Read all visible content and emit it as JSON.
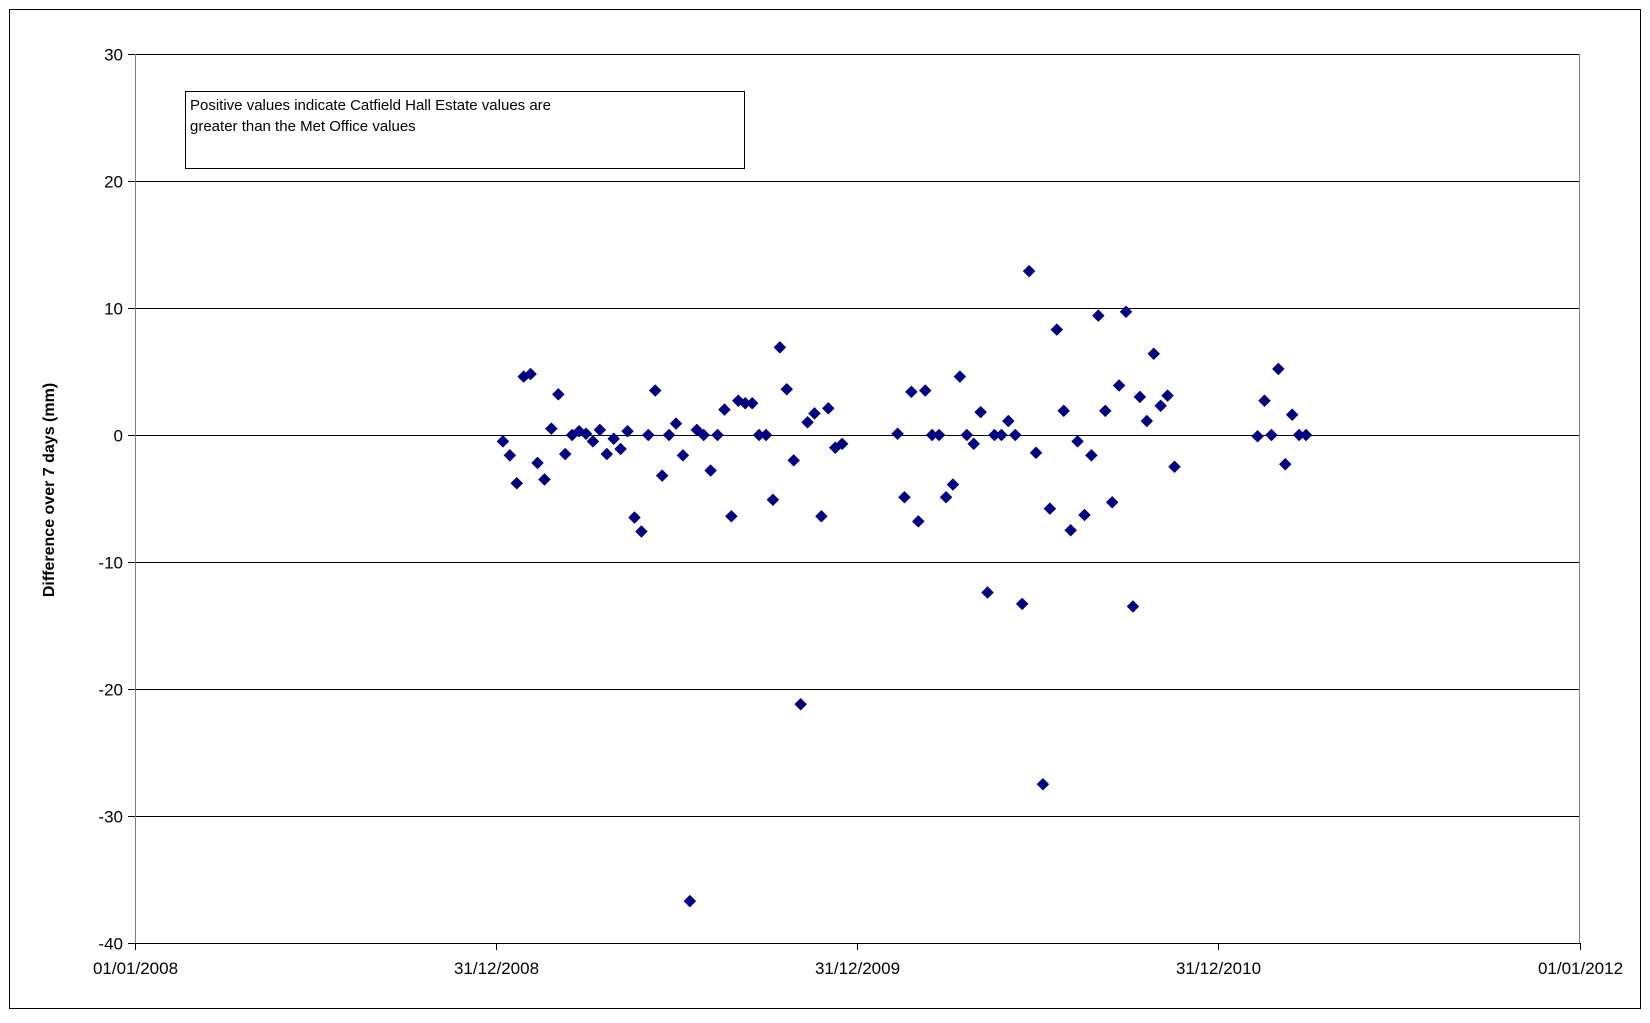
{
  "chart_data": {
    "type": "scatter",
    "title": "",
    "xlabel": "",
    "ylabel": "Difference over 7 days (mm)",
    "annotation": "Positive values indicate Catfield Hall Estate values are greater than the Met Office values",
    "annotation_lines": [
      "Positive values indicate Catfield Hall Estate values are",
      "greater than the Met Office values"
    ],
    "x_axis": {
      "type": "date",
      "min": "2008-01-01",
      "max": "2012-01-01",
      "tick_labels": [
        "01/01/2008",
        "31/12/2008",
        "31/12/2009",
        "31/12/2010",
        "01/01/2012"
      ]
    },
    "y_axis": {
      "ylim": [
        -40,
        30
      ],
      "tick_labels": [
        "-40",
        "-30",
        "-20",
        "-10",
        "0",
        "10",
        "20",
        "30"
      ]
    },
    "grid": "horizontal major gridlines",
    "legend": "none",
    "marker": {
      "shape": "diamond",
      "color": "#000080"
    },
    "series": [
      {
        "points": [
          {
            "x": "2009-01-07",
            "y": -0.5
          },
          {
            "x": "2009-01-14",
            "y": -1.6
          },
          {
            "x": "2009-01-21",
            "y": -3.8
          },
          {
            "x": "2009-01-28",
            "y": 4.6
          },
          {
            "x": "2009-02-04",
            "y": 4.8
          },
          {
            "x": "2009-02-11",
            "y": -2.2
          },
          {
            "x": "2009-02-18",
            "y": -3.5
          },
          {
            "x": "2009-02-25",
            "y": 0.5
          },
          {
            "x": "2009-03-04",
            "y": 3.2
          },
          {
            "x": "2009-03-11",
            "y": -1.5
          },
          {
            "x": "2009-03-18",
            "y": 0.0
          },
          {
            "x": "2009-03-25",
            "y": 0.3
          },
          {
            "x": "2009-04-01",
            "y": 0.1
          },
          {
            "x": "2009-04-08",
            "y": -0.5
          },
          {
            "x": "2009-04-15",
            "y": 0.4
          },
          {
            "x": "2009-04-22",
            "y": -1.5
          },
          {
            "x": "2009-04-29",
            "y": -0.3
          },
          {
            "x": "2009-05-06",
            "y": -1.1
          },
          {
            "x": "2009-05-13",
            "y": 0.3
          },
          {
            "x": "2009-05-20",
            "y": -6.5
          },
          {
            "x": "2009-05-27",
            "y": -7.6
          },
          {
            "x": "2009-06-03",
            "y": 0.0
          },
          {
            "x": "2009-06-10",
            "y": 3.5
          },
          {
            "x": "2009-06-17",
            "y": -3.2
          },
          {
            "x": "2009-06-24",
            "y": 0.0
          },
          {
            "x": "2009-07-01",
            "y": 0.9
          },
          {
            "x": "2009-07-08",
            "y": -1.6
          },
          {
            "x": "2009-07-15",
            "y": -36.7
          },
          {
            "x": "2009-07-22",
            "y": 0.4
          },
          {
            "x": "2009-07-29",
            "y": 0.0
          },
          {
            "x": "2009-08-05",
            "y": -2.8
          },
          {
            "x": "2009-08-12",
            "y": 0.0
          },
          {
            "x": "2009-08-19",
            "y": 2.0
          },
          {
            "x": "2009-08-26",
            "y": -6.4
          },
          {
            "x": "2009-09-02",
            "y": 2.7
          },
          {
            "x": "2009-09-09",
            "y": 2.5
          },
          {
            "x": "2009-09-16",
            "y": 2.5
          },
          {
            "x": "2009-09-23",
            "y": 0.0
          },
          {
            "x": "2009-09-30",
            "y": 0.0
          },
          {
            "x": "2009-10-07",
            "y": -5.1
          },
          {
            "x": "2009-10-14",
            "y": 6.9
          },
          {
            "x": "2009-10-21",
            "y": 3.6
          },
          {
            "x": "2009-10-28",
            "y": -2.0
          },
          {
            "x": "2009-11-04",
            "y": -21.2
          },
          {
            "x": "2009-11-11",
            "y": 1.0
          },
          {
            "x": "2009-11-18",
            "y": 1.7
          },
          {
            "x": "2009-11-25",
            "y": -6.4
          },
          {
            "x": "2009-12-02",
            "y": 2.1
          },
          {
            "x": "2009-12-09",
            "y": -1.0
          },
          {
            "x": "2009-12-16",
            "y": -0.7
          },
          {
            "x": "2010-02-10",
            "y": 0.1
          },
          {
            "x": "2010-02-17",
            "y": -4.9
          },
          {
            "x": "2010-02-24",
            "y": 3.4
          },
          {
            "x": "2010-03-03",
            "y": -6.8
          },
          {
            "x": "2010-03-10",
            "y": 3.5
          },
          {
            "x": "2010-03-17",
            "y": 0.0
          },
          {
            "x": "2010-03-24",
            "y": 0.0
          },
          {
            "x": "2010-03-31",
            "y": -4.9
          },
          {
            "x": "2010-04-07",
            "y": -3.9
          },
          {
            "x": "2010-04-14",
            "y": 4.6
          },
          {
            "x": "2010-04-21",
            "y": 0.0
          },
          {
            "x": "2010-04-28",
            "y": -0.7
          },
          {
            "x": "2010-05-05",
            "y": 1.8
          },
          {
            "x": "2010-05-12",
            "y": -12.4
          },
          {
            "x": "2010-05-19",
            "y": 0.0
          },
          {
            "x": "2010-05-26",
            "y": 0.0
          },
          {
            "x": "2010-06-02",
            "y": 1.1
          },
          {
            "x": "2010-06-09",
            "y": 0.0
          },
          {
            "x": "2010-06-16",
            "y": -13.3
          },
          {
            "x": "2010-06-23",
            "y": 12.9
          },
          {
            "x": "2010-06-30",
            "y": -1.4
          },
          {
            "x": "2010-07-07",
            "y": -27.5
          },
          {
            "x": "2010-07-14",
            "y": -5.8
          },
          {
            "x": "2010-07-21",
            "y": 8.3
          },
          {
            "x": "2010-07-28",
            "y": 1.9
          },
          {
            "x": "2010-08-04",
            "y": -7.5
          },
          {
            "x": "2010-08-11",
            "y": -0.5
          },
          {
            "x": "2010-08-18",
            "y": -6.3
          },
          {
            "x": "2010-08-25",
            "y": -1.6
          },
          {
            "x": "2010-09-01",
            "y": 9.4
          },
          {
            "x": "2010-09-08",
            "y": 1.9
          },
          {
            "x": "2010-09-15",
            "y": -5.3
          },
          {
            "x": "2010-09-22",
            "y": 3.9
          },
          {
            "x": "2010-09-29",
            "y": 9.7
          },
          {
            "x": "2010-10-06",
            "y": -13.5
          },
          {
            "x": "2010-10-13",
            "y": 3.0
          },
          {
            "x": "2010-10-20",
            "y": 1.1
          },
          {
            "x": "2010-10-27",
            "y": 6.4
          },
          {
            "x": "2010-11-03",
            "y": 2.3
          },
          {
            "x": "2010-11-10",
            "y": 3.1
          },
          {
            "x": "2010-11-17",
            "y": -2.5
          },
          {
            "x": "2011-02-09",
            "y": -0.1
          },
          {
            "x": "2011-02-16",
            "y": 2.7
          },
          {
            "x": "2011-02-23",
            "y": 0.0
          },
          {
            "x": "2011-03-02",
            "y": 5.2
          },
          {
            "x": "2011-03-09",
            "y": -2.3
          },
          {
            "x": "2011-03-16",
            "y": 1.6
          },
          {
            "x": "2011-03-23",
            "y": 0.0
          },
          {
            "x": "2011-03-30",
            "y": 0.0
          }
        ]
      }
    ]
  }
}
